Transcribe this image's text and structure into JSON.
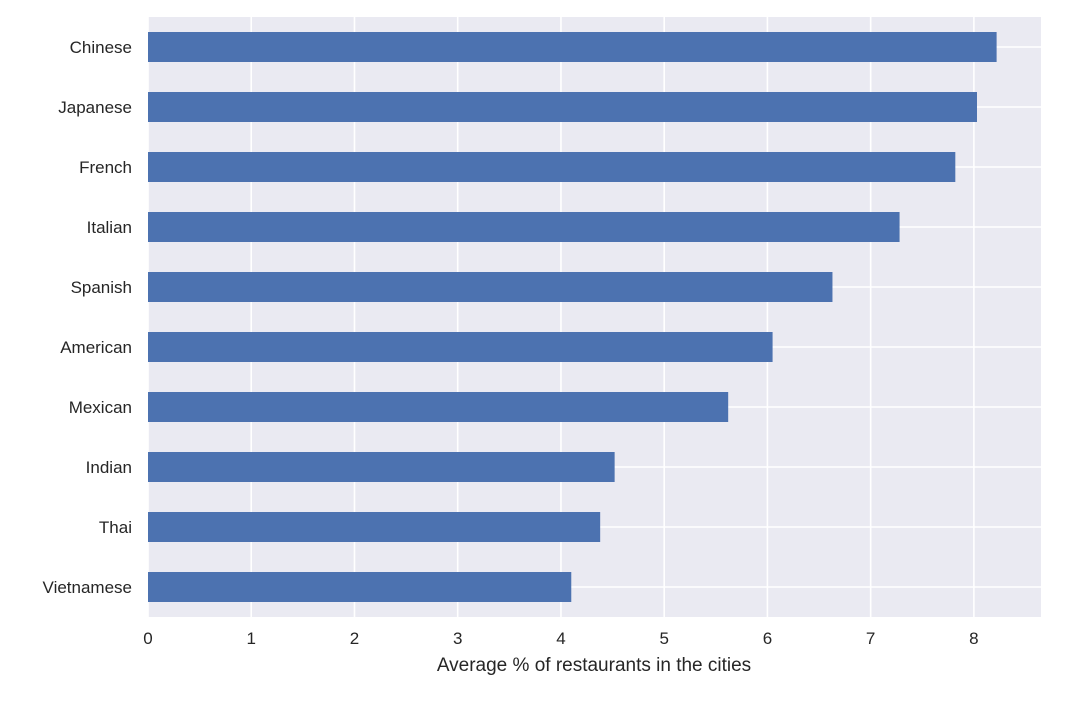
{
  "chart_data": {
    "type": "bar",
    "orientation": "horizontal",
    "categories": [
      "Chinese",
      "Japanese",
      "French",
      "Italian",
      "Spanish",
      "American",
      "Mexican",
      "Indian",
      "Thai",
      "Vietnamese"
    ],
    "values": [
      8.22,
      8.03,
      7.82,
      7.28,
      6.63,
      6.05,
      5.62,
      4.52,
      4.38,
      4.1
    ],
    "xlabel": "Average % of restaurants in the cities",
    "ylabel": "",
    "xlim": [
      0,
      8.65
    ],
    "xticks": [
      0,
      1,
      2,
      3,
      4,
      5,
      6,
      7,
      8
    ],
    "grid": true,
    "legend": "none",
    "colors": {
      "bar": "#4c72b0",
      "plot_background": "#eaeaf2",
      "grid": "#ffffff",
      "text": "#262626"
    }
  }
}
